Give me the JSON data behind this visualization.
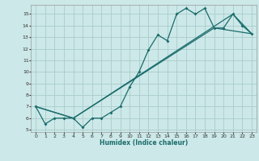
{
  "title": "",
  "xlabel": "Humidex (Indice chaleur)",
  "bg_color": "#cce8e8",
  "grid_color": "#aacccc",
  "line_color": "#1a6b6b",
  "xlim": [
    -0.5,
    23.5
  ],
  "ylim": [
    4.8,
    15.8
  ],
  "yticks": [
    5,
    6,
    7,
    8,
    9,
    10,
    11,
    12,
    13,
    14,
    15
  ],
  "xticks": [
    0,
    1,
    2,
    3,
    4,
    5,
    6,
    7,
    8,
    9,
    10,
    11,
    12,
    13,
    14,
    15,
    16,
    17,
    18,
    19,
    20,
    21,
    22,
    23
  ],
  "line1_x": [
    0,
    1,
    2,
    3,
    4,
    5,
    6,
    7,
    8,
    9,
    10,
    11,
    12,
    13,
    14,
    15,
    16,
    17,
    18,
    19,
    20,
    21,
    22,
    23
  ],
  "line1_y": [
    7.0,
    5.5,
    6.0,
    6.0,
    6.0,
    5.2,
    6.0,
    6.0,
    6.5,
    7.0,
    8.7,
    10.0,
    11.9,
    13.2,
    12.7,
    15.0,
    15.5,
    15.0,
    15.5,
    13.8,
    13.8,
    15.0,
    14.0,
    13.3
  ],
  "line2_x": [
    0,
    4,
    21,
    23
  ],
  "line2_y": [
    7.0,
    6.0,
    15.0,
    13.3
  ],
  "line3_x": [
    0,
    4,
    19,
    23
  ],
  "line3_y": [
    7.0,
    6.0,
    13.8,
    13.3
  ],
  "xlabel_fontsize": 5.5,
  "tick_fontsize": 4.5
}
